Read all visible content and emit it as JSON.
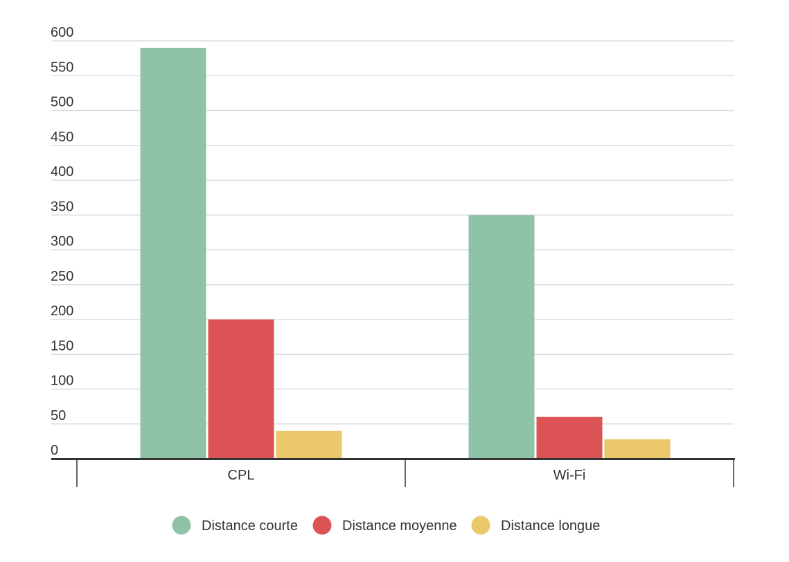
{
  "chart_data": {
    "type": "bar",
    "categories": [
      "CPL",
      "Wi-Fi"
    ],
    "series": [
      {
        "name": "Distance courte",
        "values": [
          590,
          350
        ],
        "color": "#8fc2a6"
      },
      {
        "name": "Distance moyenne",
        "values": [
          200,
          60
        ],
        "color": "#dc5355"
      },
      {
        "name": "Distance longue",
        "values": [
          40,
          28
        ],
        "color": "#ebc96b"
      }
    ],
    "ylim": [
      0,
      600
    ],
    "yticks": [
      0,
      50,
      100,
      150,
      200,
      250,
      300,
      350,
      400,
      450,
      500,
      550,
      600
    ],
    "grid": true,
    "legend": "bottom",
    "title": "",
    "xlabel": "",
    "ylabel": ""
  }
}
